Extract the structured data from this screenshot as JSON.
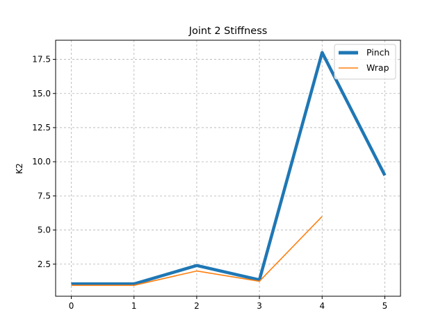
{
  "chart_data": {
    "type": "line",
    "title": "Joint 2 Stiffness",
    "xlabel": "",
    "ylabel": "K2",
    "xlim": [
      -0.25,
      5.25
    ],
    "ylim": [
      0.15,
      18.9
    ],
    "xticks": [
      0,
      1,
      2,
      3,
      4,
      5
    ],
    "xtick_labels": [
      "0",
      "1",
      "2",
      "3",
      "4",
      "5"
    ],
    "yticks": [
      2.5,
      5.0,
      7.5,
      10.0,
      12.5,
      15.0,
      17.5
    ],
    "ytick_labels": [
      "2.5",
      "5.0",
      "7.5",
      "10.0",
      "12.5",
      "15.0",
      "17.5"
    ],
    "grid": true,
    "legend_position": "top-right",
    "series": [
      {
        "name": "Pinch",
        "color": "#1f77b4",
        "x": [
          0,
          1,
          2,
          3,
          4,
          5
        ],
        "values": [
          1.05,
          1.05,
          2.4,
          1.35,
          18.0,
          9.0
        ]
      },
      {
        "name": "Wrap",
        "color": "#ff7f0e",
        "x": [
          0,
          1,
          2,
          3,
          4
        ],
        "values": [
          0.95,
          0.95,
          2.0,
          1.25,
          6.0
        ]
      }
    ]
  }
}
